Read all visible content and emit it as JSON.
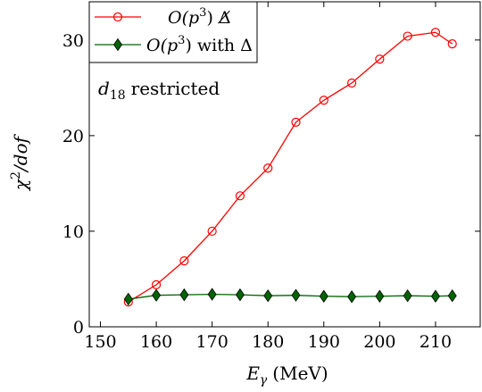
{
  "chart_data": {
    "type": "line",
    "title": "",
    "xlabel": "Eγ (MeV)",
    "xlabel_parts": {
      "main": "E",
      "sub": "γ",
      "unit": "(MeV)"
    },
    "ylabel": "χ²/dof",
    "ylabel_parts": {
      "main": "χ",
      "sup": "2",
      "rest": "/dof"
    },
    "xlim": [
      148,
      218
    ],
    "ylim": [
      0,
      34
    ],
    "xticks": [
      150,
      160,
      170,
      180,
      190,
      200,
      210
    ],
    "yticks": [
      0,
      10,
      20,
      30
    ],
    "grid": false,
    "legend_position": "top-left",
    "annotation": {
      "main": "d",
      "sub": "18",
      "rest": "restricted"
    },
    "series": [
      {
        "name": "O(p³) Δ̸",
        "name_parts": {
          "pre": "O(p",
          "sup": "3",
          "post": ")",
          "tail": "Δ̸"
        },
        "color": "#ff0000",
        "marker": "circle-open",
        "x": [
          155,
          160,
          165,
          170,
          175,
          180,
          185,
          190,
          195,
          200,
          205,
          210,
          213
        ],
        "y": [
          2.6,
          4.4,
          6.9,
          10.0,
          13.7,
          16.6,
          21.4,
          23.7,
          25.5,
          28.0,
          30.4,
          30.8,
          29.6
        ]
      },
      {
        "name": "O(p³) with Δ",
        "name_parts": {
          "pre": "O(p",
          "sup": "3",
          "post": ")",
          "tail": "with Δ"
        },
        "color": "#006400",
        "marker": "diamond-filled",
        "x": [
          155,
          160,
          165,
          170,
          175,
          180,
          185,
          190,
          195,
          200,
          205,
          210,
          213
        ],
        "y": [
          2.9,
          3.3,
          3.35,
          3.4,
          3.35,
          3.25,
          3.3,
          3.2,
          3.15,
          3.2,
          3.25,
          3.2,
          3.25
        ]
      }
    ]
  }
}
